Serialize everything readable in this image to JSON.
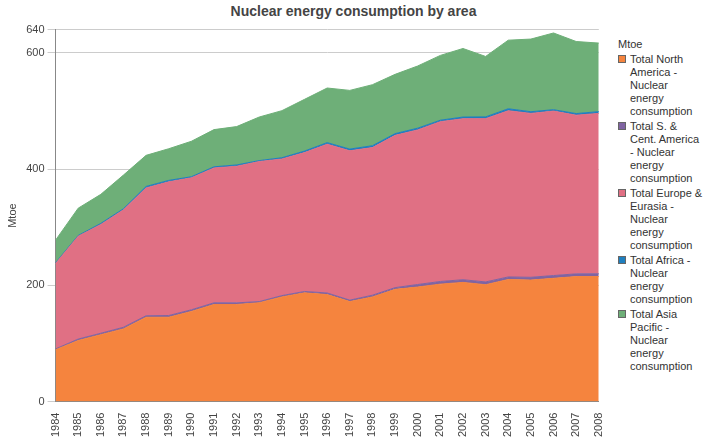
{
  "chart_data": {
    "type": "area",
    "title": "Nuclear energy consumption by area",
    "y_label": "Mtoe",
    "legend_title": "Mtoe",
    "stacked": true,
    "grid": true,
    "legend": "right",
    "categories": [
      "1984",
      "1985",
      "1986",
      "1987",
      "1988",
      "1989",
      "1990",
      "1991",
      "1992",
      "1993",
      "1994",
      "1995",
      "1996",
      "1997",
      "1998",
      "1999",
      "2000",
      "2001",
      "2002",
      "2003",
      "2004",
      "2005",
      "2006",
      "2007",
      "2008"
    ],
    "ylim": [
      0,
      640
    ],
    "yticks": [
      0,
      200,
      400,
      600,
      640
    ],
    "series": [
      {
        "name": "Total North America - Nuclear energy consumption",
        "color": "#f5843e",
        "values": [
          89,
          105,
          115,
          125,
          145,
          145,
          155,
          167,
          167,
          170,
          180,
          187,
          184,
          172,
          180,
          193,
          197,
          202,
          205,
          201,
          210,
          209,
          212,
          215,
          215
        ]
      },
      {
        "name": "Total S. & Cent. America - Nuclear energy consumption",
        "color": "#8064a2",
        "values": [
          1.5,
          2.5,
          2.5,
          2.8,
          2.6,
          3.0,
          2.9,
          2.9,
          2.8,
          2.0,
          2.3,
          2.4,
          2.8,
          2.5,
          3.0,
          3.0,
          4.4,
          4.6,
          4.6,
          4.8,
          4.4,
          4.8,
          4.8,
          4.7,
          4.8
        ]
      },
      {
        "name": "Total Europe & Eurasia - Nuclear energy consumption",
        "color": "#e07084",
        "values": [
          147,
          177,
          187,
          202,
          220,
          230,
          227,
          232,
          235,
          241,
          235,
          239,
          256,
          257,
          254,
          262,
          266,
          275,
          277,
          281,
          286,
          282,
          283,
          273,
          276
        ]
      },
      {
        "name": "Total Africa - Nuclear energy consumption",
        "color": "#1f7fbf",
        "values": [
          1.2,
          1.2,
          2.0,
          1.9,
          2.5,
          2.5,
          1.9,
          2.0,
          2.3,
          1.6,
          2.2,
          2.6,
          2.7,
          2.9,
          3.2,
          3.0,
          3.0,
          2.5,
          2.9,
          3.0,
          3.4,
          2.9,
          2.4,
          2.8,
          3.0
        ]
      },
      {
        "name": "Total Asia Pacific - Nuclear energy consumption",
        "color": "#6eaf78",
        "values": [
          39,
          47,
          50,
          58,
          53.5,
          54.5,
          61,
          64,
          66,
          75,
          81,
          89,
          94,
          101,
          105,
          102,
          107,
          111.5,
          118,
          104,
          118,
          125,
          132,
          124,
          118
        ]
      }
    ]
  }
}
